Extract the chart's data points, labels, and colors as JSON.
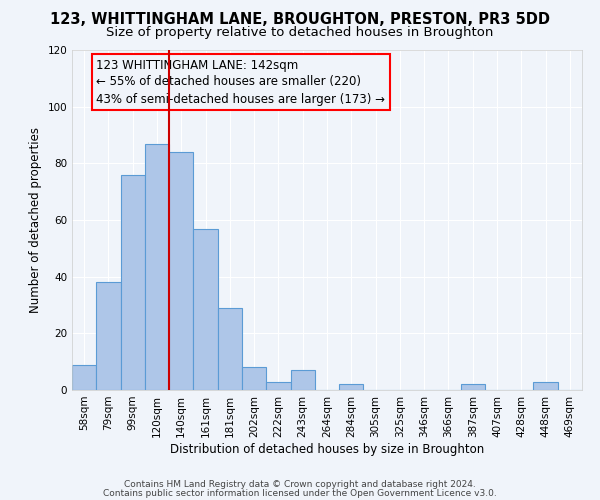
{
  "title": "123, WHITTINGHAM LANE, BROUGHTON, PRESTON, PR3 5DD",
  "subtitle": "Size of property relative to detached houses in Broughton",
  "xlabel": "Distribution of detached houses by size in Broughton",
  "ylabel": "Number of detached properties",
  "bar_labels": [
    "58sqm",
    "79sqm",
    "99sqm",
    "120sqm",
    "140sqm",
    "161sqm",
    "181sqm",
    "202sqm",
    "222sqm",
    "243sqm",
    "264sqm",
    "284sqm",
    "305sqm",
    "325sqm",
    "346sqm",
    "366sqm",
    "387sqm",
    "407sqm",
    "428sqm",
    "448sqm",
    "469sqm"
  ],
  "bar_values": [
    9,
    38,
    76,
    87,
    84,
    57,
    29,
    8,
    3,
    7,
    0,
    2,
    0,
    0,
    0,
    0,
    2,
    0,
    0,
    3,
    0
  ],
  "bar_color": "#aec6e8",
  "bar_edge_color": "#5b9bd5",
  "vline_x": 4,
  "vline_color": "#cc0000",
  "annotation_line1": "123 WHITTINGHAM LANE: 142sqm",
  "annotation_line2": "← 55% of detached houses are smaller (220)",
  "annotation_line3": "43% of semi-detached houses are larger (173) →",
  "ylim": [
    0,
    120
  ],
  "yticks": [
    0,
    20,
    40,
    60,
    80,
    100,
    120
  ],
  "footer_line1": "Contains HM Land Registry data © Crown copyright and database right 2024.",
  "footer_line2": "Contains public sector information licensed under the Open Government Licence v3.0.",
  "background_color": "#f0f4fa",
  "grid_color": "#ffffff",
  "title_fontsize": 10.5,
  "subtitle_fontsize": 9.5,
  "axis_label_fontsize": 8.5,
  "tick_fontsize": 7.5,
  "annotation_fontsize": 8.5,
  "footer_fontsize": 6.5
}
